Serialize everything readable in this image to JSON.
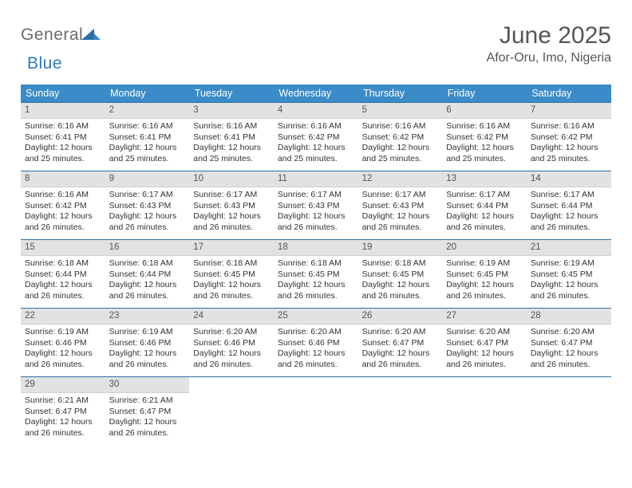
{
  "brand": {
    "word1": "General",
    "word2": "Blue"
  },
  "title": "June 2025",
  "location": "Afor-Oru, Imo, Nigeria",
  "colors": {
    "header_bg": "#3b8bc8",
    "header_text": "#ffffff",
    "row_border": "#2f6fa3",
    "daynum_bg": "#e2e2e2",
    "text": "#333333",
    "logo_gray": "#6b6b6b",
    "logo_blue": "#2f7bbf"
  },
  "weekdays": [
    "Sunday",
    "Monday",
    "Tuesday",
    "Wednesday",
    "Thursday",
    "Friday",
    "Saturday"
  ],
  "weeks": [
    [
      {
        "n": "1",
        "sr": "6:16 AM",
        "ss": "6:41 PM",
        "dl": "12 hours and 25 minutes."
      },
      {
        "n": "2",
        "sr": "6:16 AM",
        "ss": "6:41 PM",
        "dl": "12 hours and 25 minutes."
      },
      {
        "n": "3",
        "sr": "6:16 AM",
        "ss": "6:41 PM",
        "dl": "12 hours and 25 minutes."
      },
      {
        "n": "4",
        "sr": "6:16 AM",
        "ss": "6:42 PM",
        "dl": "12 hours and 25 minutes."
      },
      {
        "n": "5",
        "sr": "6:16 AM",
        "ss": "6:42 PM",
        "dl": "12 hours and 25 minutes."
      },
      {
        "n": "6",
        "sr": "6:16 AM",
        "ss": "6:42 PM",
        "dl": "12 hours and 25 minutes."
      },
      {
        "n": "7",
        "sr": "6:16 AM",
        "ss": "6:42 PM",
        "dl": "12 hours and 25 minutes."
      }
    ],
    [
      {
        "n": "8",
        "sr": "6:16 AM",
        "ss": "6:42 PM",
        "dl": "12 hours and 26 minutes."
      },
      {
        "n": "9",
        "sr": "6:17 AM",
        "ss": "6:43 PM",
        "dl": "12 hours and 26 minutes."
      },
      {
        "n": "10",
        "sr": "6:17 AM",
        "ss": "6:43 PM",
        "dl": "12 hours and 26 minutes."
      },
      {
        "n": "11",
        "sr": "6:17 AM",
        "ss": "6:43 PM",
        "dl": "12 hours and 26 minutes."
      },
      {
        "n": "12",
        "sr": "6:17 AM",
        "ss": "6:43 PM",
        "dl": "12 hours and 26 minutes."
      },
      {
        "n": "13",
        "sr": "6:17 AM",
        "ss": "6:44 PM",
        "dl": "12 hours and 26 minutes."
      },
      {
        "n": "14",
        "sr": "6:17 AM",
        "ss": "6:44 PM",
        "dl": "12 hours and 26 minutes."
      }
    ],
    [
      {
        "n": "15",
        "sr": "6:18 AM",
        "ss": "6:44 PM",
        "dl": "12 hours and 26 minutes."
      },
      {
        "n": "16",
        "sr": "6:18 AM",
        "ss": "6:44 PM",
        "dl": "12 hours and 26 minutes."
      },
      {
        "n": "17",
        "sr": "6:18 AM",
        "ss": "6:45 PM",
        "dl": "12 hours and 26 minutes."
      },
      {
        "n": "18",
        "sr": "6:18 AM",
        "ss": "6:45 PM",
        "dl": "12 hours and 26 minutes."
      },
      {
        "n": "19",
        "sr": "6:18 AM",
        "ss": "6:45 PM",
        "dl": "12 hours and 26 minutes."
      },
      {
        "n": "20",
        "sr": "6:19 AM",
        "ss": "6:45 PM",
        "dl": "12 hours and 26 minutes."
      },
      {
        "n": "21",
        "sr": "6:19 AM",
        "ss": "6:45 PM",
        "dl": "12 hours and 26 minutes."
      }
    ],
    [
      {
        "n": "22",
        "sr": "6:19 AM",
        "ss": "6:46 PM",
        "dl": "12 hours and 26 minutes."
      },
      {
        "n": "23",
        "sr": "6:19 AM",
        "ss": "6:46 PM",
        "dl": "12 hours and 26 minutes."
      },
      {
        "n": "24",
        "sr": "6:20 AM",
        "ss": "6:46 PM",
        "dl": "12 hours and 26 minutes."
      },
      {
        "n": "25",
        "sr": "6:20 AM",
        "ss": "6:46 PM",
        "dl": "12 hours and 26 minutes."
      },
      {
        "n": "26",
        "sr": "6:20 AM",
        "ss": "6:47 PM",
        "dl": "12 hours and 26 minutes."
      },
      {
        "n": "27",
        "sr": "6:20 AM",
        "ss": "6:47 PM",
        "dl": "12 hours and 26 minutes."
      },
      {
        "n": "28",
        "sr": "6:20 AM",
        "ss": "6:47 PM",
        "dl": "12 hours and 26 minutes."
      }
    ],
    [
      {
        "n": "29",
        "sr": "6:21 AM",
        "ss": "6:47 PM",
        "dl": "12 hours and 26 minutes."
      },
      {
        "n": "30",
        "sr": "6:21 AM",
        "ss": "6:47 PM",
        "dl": "12 hours and 26 minutes."
      },
      null,
      null,
      null,
      null,
      null
    ]
  ],
  "labels": {
    "sunrise": "Sunrise:",
    "sunset": "Sunset:",
    "daylight": "Daylight:"
  }
}
